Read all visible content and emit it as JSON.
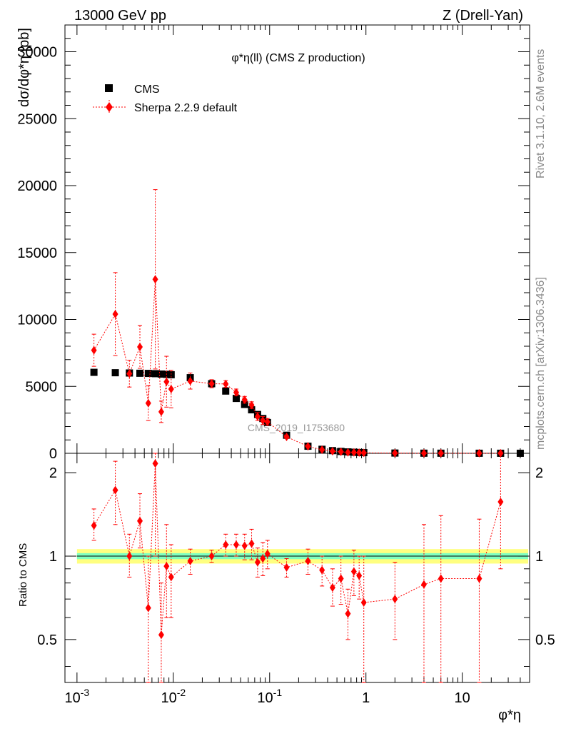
{
  "header": {
    "left": "13000 GeV pp",
    "right": "Z (Drell-Yan)"
  },
  "side_labels": {
    "rivet": "Rivet 3.1.10,  2.6M events",
    "mcplots": "mcplots.cern.ch [arXiv:1306.3436]"
  },
  "watermark": "CMS_2019_I1753680",
  "chart_data": {
    "type": "scatter",
    "title": "φ*η(ll) (CMS Z production)",
    "ylabel": "dσ/dφ*η [pb]",
    "ratio_ylabel": "Ratio to CMS",
    "xlabel": "φ*η",
    "xscale": "log",
    "xlim": [
      0.00075,
      50
    ],
    "ylim": [
      0,
      32000
    ],
    "ratio_ylim": [
      0.35,
      2.35
    ],
    "ratio_yscale": "log",
    "x_ticks": [
      "10^-3",
      "10^-2",
      "10^-1",
      "1",
      "10"
    ],
    "x_tick_values": [
      0.001,
      0.01,
      0.1,
      1,
      10
    ],
    "y_ticks": [
      0,
      5000,
      10000,
      15000,
      20000,
      25000,
      30000
    ],
    "ratio_y_ticks": [
      0.5,
      1,
      2
    ],
    "legend_position": "top-left",
    "legend": [
      "CMS",
      "Sherpa 2.2.9 default"
    ],
    "series": [
      {
        "name": "CMS",
        "color": "#000000",
        "x": [
          0.0015,
          0.0025,
          0.0035,
          0.0045,
          0.0055,
          0.0065,
          0.0075,
          0.0085,
          0.0095,
          0.015,
          0.025,
          0.035,
          0.045,
          0.055,
          0.065,
          0.075,
          0.085,
          0.095,
          0.15,
          0.25,
          0.35,
          0.45,
          0.55,
          0.65,
          0.75,
          0.85,
          0.95,
          2,
          4,
          6,
          15,
          25,
          40
        ],
        "y": [
          6050,
          6020,
          6000,
          5980,
          5970,
          5950,
          5920,
          5900,
          5870,
          5650,
          5200,
          4650,
          4100,
          3650,
          3250,
          2900,
          2600,
          2300,
          1350,
          530,
          300,
          200,
          140,
          105,
          80,
          62,
          50,
          20,
          10,
          8,
          5,
          4,
          3
        ]
      },
      {
        "name": "Sherpa 2.2.9 default",
        "color": "#ff0000",
        "x": [
          0.0015,
          0.0025,
          0.0035,
          0.0045,
          0.0055,
          0.0065,
          0.0075,
          0.0085,
          0.0095,
          0.015,
          0.025,
          0.035,
          0.045,
          0.055,
          0.065,
          0.075,
          0.085,
          0.095,
          0.15,
          0.25,
          0.35,
          0.45,
          0.55,
          0.65,
          0.75,
          0.85,
          0.95,
          2,
          4,
          6,
          15,
          25
        ],
        "y": [
          7700,
          10400,
          5950,
          7950,
          3750,
          13000,
          3100,
          5350,
          4800,
          5400,
          5200,
          5180,
          4550,
          4000,
          3600,
          2750,
          2450,
          2350,
          1230,
          520,
          270,
          155,
          115,
          65,
          70,
          52,
          35,
          14,
          8,
          7,
          4,
          6
        ],
        "yerr": [
          1200,
          3100,
          1000,
          1600,
          1300,
          6700,
          800,
          1900,
          1400,
          600,
          300,
          250,
          250,
          250,
          250,
          300,
          300,
          250,
          120,
          50,
          50,
          40,
          40,
          30,
          35,
          30,
          30,
          12,
          8,
          6,
          5,
          6
        ]
      }
    ],
    "ratio": {
      "x": [
        0.0015,
        0.0025,
        0.0035,
        0.0045,
        0.0055,
        0.0065,
        0.0075,
        0.0085,
        0.0095,
        0.015,
        0.025,
        0.035,
        0.045,
        0.055,
        0.065,
        0.075,
        0.085,
        0.095,
        0.15,
        0.25,
        0.35,
        0.45,
        0.55,
        0.65,
        0.75,
        0.85,
        0.95,
        2,
        4,
        6,
        15,
        25
      ],
      "y": [
        1.29,
        1.73,
        1.0,
        1.34,
        0.65,
        2.16,
        0.52,
        0.92,
        0.84,
        0.96,
        1.0,
        1.1,
        1.1,
        1.09,
        1.11,
        0.95,
        0.98,
        1.02,
        0.91,
        0.96,
        0.89,
        0.77,
        0.83,
        0.62,
        0.88,
        0.85,
        0.68,
        0.7,
        0.79,
        0.83,
        0.83,
        1.57
      ],
      "ylo": [
        1.14,
        1.3,
        0.84,
        1.07,
        0.35,
        1.0,
        0.33,
        0.6,
        0.6,
        0.86,
        0.95,
        1.0,
        1.0,
        0.97,
        0.97,
        0.84,
        0.85,
        0.9,
        0.84,
        0.86,
        0.78,
        0.66,
        0.67,
        0.5,
        0.72,
        0.7,
        0.35,
        0.5,
        0.35,
        0.35,
        0.35,
        0.9
      ],
      "yhi": [
        1.48,
        2.2,
        1.2,
        1.68,
        1.0,
        2.35,
        0.8,
        1.3,
        1.1,
        1.06,
        1.05,
        1.2,
        1.2,
        1.2,
        1.25,
        1.07,
        1.12,
        1.14,
        0.98,
        1.06,
        1.0,
        0.9,
        1.0,
        0.76,
        1.05,
        1.0,
        1.0,
        0.95,
        1.3,
        1.4,
        1.36,
        2.35
      ]
    },
    "ratio_band": {
      "inner_color": "#7fffbf",
      "inner_halfwidth": 0.025,
      "outer_color": "#ffff80",
      "outer_halfwidth": 0.06
    }
  }
}
